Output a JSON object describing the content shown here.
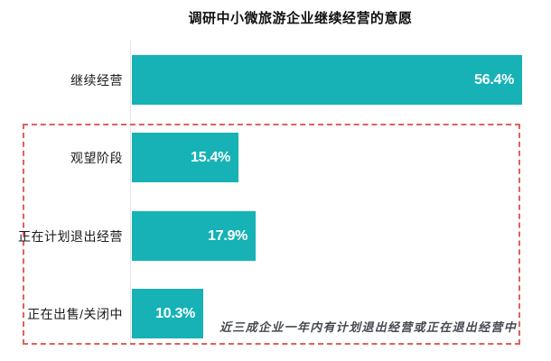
{
  "title": "调研中小微旅游企业继续经营的意愿",
  "colors": {
    "bar": "#16b2b5",
    "bar_value_text": "#ffffff",
    "highlight_border": "#e0605c",
    "label_text": "#1a1a1a",
    "annotation_text": "#464b52",
    "axis_line": "#e4e4e4",
    "background": "#ffffff"
  },
  "annotation": "近三成企业一年内有计划退出经营或正在退出经营中",
  "chart_data": {
    "type": "bar",
    "orientation": "horizontal",
    "title": "调研中小微旅游企业继续经营的意愿",
    "categories": [
      "继续经营",
      "观望阶段",
      "正在计划退出经营",
      "正在出售/关闭中"
    ],
    "values": [
      56.4,
      15.4,
      17.9,
      10.3
    ],
    "value_labels": [
      "56.4%",
      "15.4%",
      "17.9%",
      "10.3%"
    ],
    "unit": "%",
    "xlim": [
      0,
      60
    ],
    "grid": false,
    "legend": false,
    "value_label_position": "inside-end",
    "highlighted_categories": [
      "观望阶段",
      "正在计划退出经营",
      "正在出售/关闭中"
    ],
    "annotation": "近三成企业一年内有计划退出经营或正在退出经营中"
  }
}
